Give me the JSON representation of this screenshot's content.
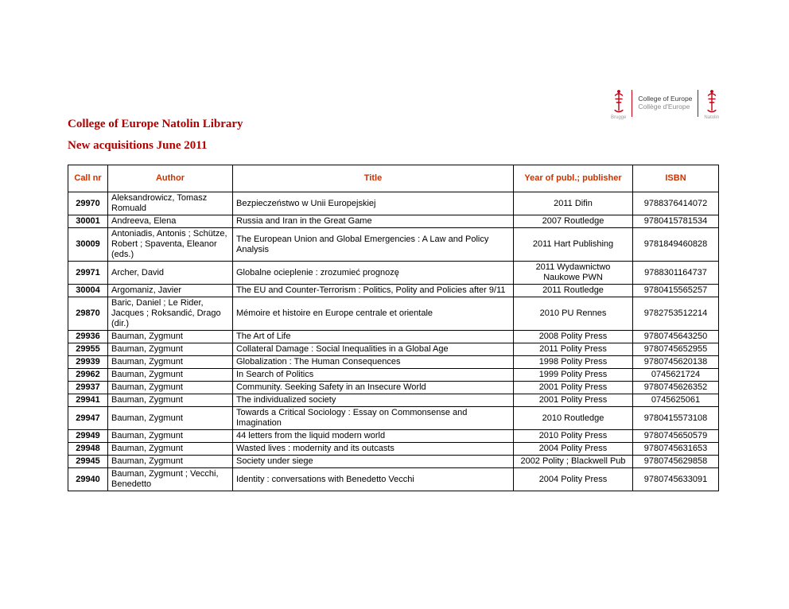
{
  "page": {
    "title": "College of Europe Natolin Library",
    "subtitle": "New acquisitions June 2011"
  },
  "logo": {
    "name_en": "College of Europe",
    "name_fr": "Collège d'Europe",
    "campus_left": "Brugge",
    "campus_right": "Natolin"
  },
  "colors": {
    "title_red": "#b00000",
    "header_red": "#cc3300",
    "logo_red": "#c00013"
  },
  "table": {
    "headers": [
      "Call nr",
      "Author",
      "Title",
      "Year of publ.; publisher",
      "ISBN"
    ],
    "rows": [
      [
        "29970",
        "Aleksandrowicz, Tomasz Romuald",
        "Bezpieczeństwo w Unii Europejskiej",
        "2011 Difin",
        "9788376414072"
      ],
      [
        "30001",
        "Andreeva, Elena",
        "Russia and Iran in the Great Game",
        "2007 Routledge",
        "9780415781534"
      ],
      [
        "30009",
        "Antoniadis, Antonis ; Schütze, Robert ; Spaventa, Eleanor (eds.)",
        "The European Union and Global Emergencies : A Law and Policy Analysis",
        "2011 Hart Publishing",
        "9781849460828"
      ],
      [
        "29971",
        "Archer, David",
        "Globalne ocieplenie : zrozumieć prognozę",
        "2011 Wydawnictwo Naukowe PWN",
        "9788301164737"
      ],
      [
        "30004",
        "Argomaniz, Javier",
        "The EU and Counter-Terrorism : Politics, Polity and Policies after 9/11",
        "2011 Routledge",
        "9780415565257"
      ],
      [
        "29870",
        "Baric, Daniel ; Le Rider, Jacques ; Roksandić, Drago (dir.)",
        "Mémoire et histoire en Europe centrale et orientale",
        "2010 PU Rennes",
        "9782753512214"
      ],
      [
        "29936",
        "Bauman, Zygmunt",
        "The Art of Life",
        "2008 Polity Press",
        "9780745643250"
      ],
      [
        "29955",
        "Bauman, Zygmunt",
        "Collateral Damage : Social Inequalities in a Global Age",
        "2011 Polity Press",
        "9780745652955"
      ],
      [
        "29939",
        "Bauman, Zygmunt",
        "Globalization : The Human Consequences",
        "1998 Polity Press",
        "9780745620138"
      ],
      [
        "29962",
        "Bauman, Zygmunt",
        "In Search of Politics",
        "1999 Polity Press",
        "0745621724"
      ],
      [
        "29937",
        "Bauman, Zygmunt",
        "Community. Seeking Safety in an Insecure World",
        "2001 Polity Press",
        "9780745626352"
      ],
      [
        "29941",
        "Bauman, Zygmunt",
        "The individualized society",
        "2001 Polity Press",
        "0745625061"
      ],
      [
        "29947",
        "Bauman, Zygmunt",
        "Towards a Critical Sociology : Essay on Commonsense and Imagination",
        "2010 Routledge",
        "9780415573108"
      ],
      [
        "29949",
        "Bauman, Zygmunt",
        "44 letters from the liquid modern world",
        "2010 Polity Press",
        "9780745650579"
      ],
      [
        "29948",
        "Bauman, Zygmunt",
        "Wasted lives : modernity and its outcasts",
        "2004 Polity Press",
        "9780745631653"
      ],
      [
        "29945",
        "Bauman, Zygmunt",
        "Society under siege",
        "2002 Polity ; Blackwell Pub",
        "9780745629858"
      ],
      [
        "29940",
        "Bauman, Zygmunt ; Vecchi, Benedetto",
        "Identity : conversations with Benedetto Vecchi",
        "2004 Polity Press",
        "9780745633091"
      ]
    ]
  }
}
